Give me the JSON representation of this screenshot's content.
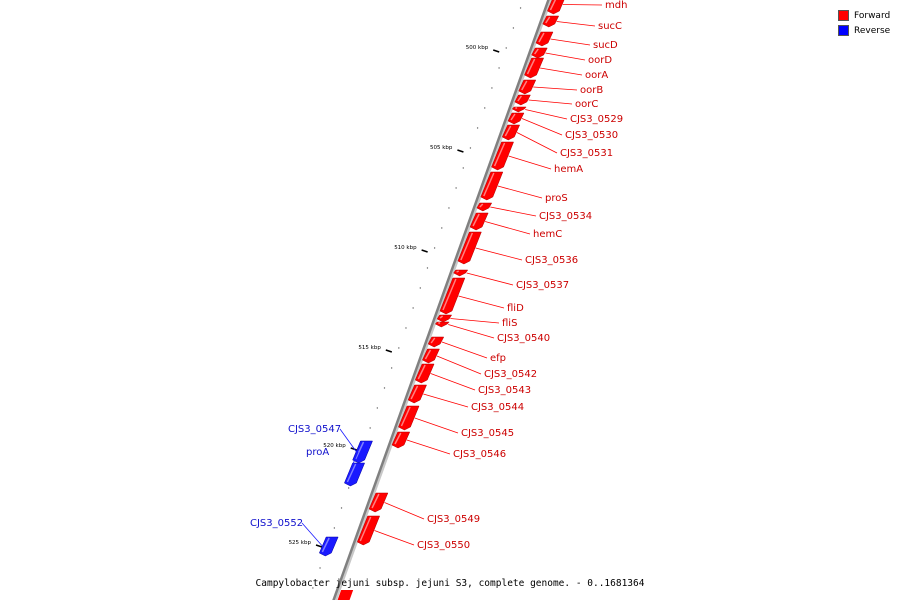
{
  "caption": "Campylobacter jejuni subsp. jejuni S3, complete genome. - 0..1681364",
  "legend": [
    {
      "label": "Forward",
      "color": "#ff0000"
    },
    {
      "label": "Reverse",
      "color": "#0000ff"
    }
  ],
  "colors": {
    "forward": "#ff0000",
    "reverse": "#1a1aff",
    "backbone": "#808080"
  },
  "ticks": [
    {
      "label": "500 kbp",
      "position_kbp": 500
    },
    {
      "label": "505 kbp",
      "position_kbp": 505
    },
    {
      "label": "510 kbp",
      "position_kbp": 510
    },
    {
      "label": "515 kbp",
      "position_kbp": 515
    },
    {
      "label": "520 kbp",
      "position_kbp": 520
    },
    {
      "label": "525 kbp",
      "position_kbp": 525
    }
  ],
  "genes": [
    {
      "name": "mdh",
      "strand": "forward"
    },
    {
      "name": "sucC",
      "strand": "forward"
    },
    {
      "name": "sucD",
      "strand": "forward"
    },
    {
      "name": "oorD",
      "strand": "forward"
    },
    {
      "name": "oorA",
      "strand": "forward"
    },
    {
      "name": "oorB",
      "strand": "forward"
    },
    {
      "name": "oorC",
      "strand": "forward"
    },
    {
      "name": "CJS3_0529",
      "strand": "forward"
    },
    {
      "name": "CJS3_0530",
      "strand": "forward"
    },
    {
      "name": "CJS3_0531",
      "strand": "forward"
    },
    {
      "name": "hemA",
      "strand": "forward"
    },
    {
      "name": "proS",
      "strand": "forward"
    },
    {
      "name": "CJS3_0534",
      "strand": "forward"
    },
    {
      "name": "hemC",
      "strand": "forward"
    },
    {
      "name": "CJS3_0536",
      "strand": "forward"
    },
    {
      "name": "CJS3_0537",
      "strand": "forward"
    },
    {
      "name": "fliD",
      "strand": "forward"
    },
    {
      "name": "fliS",
      "strand": "forward"
    },
    {
      "name": "CJS3_0540",
      "strand": "forward"
    },
    {
      "name": "efp",
      "strand": "forward"
    },
    {
      "name": "CJS3_0542",
      "strand": "forward"
    },
    {
      "name": "CJS3_0543",
      "strand": "forward"
    },
    {
      "name": "CJS3_0544",
      "strand": "forward"
    },
    {
      "name": "CJS3_0545",
      "strand": "forward"
    },
    {
      "name": "CJS3_0546",
      "strand": "forward"
    },
    {
      "name": "CJS3_0547",
      "strand": "reverse"
    },
    {
      "name": "proA",
      "strand": "reverse"
    },
    {
      "name": "CJS3_0549",
      "strand": "forward"
    },
    {
      "name": "CJS3_0550",
      "strand": "forward"
    },
    {
      "name": "CJS3_0552",
      "strand": "reverse"
    }
  ]
}
